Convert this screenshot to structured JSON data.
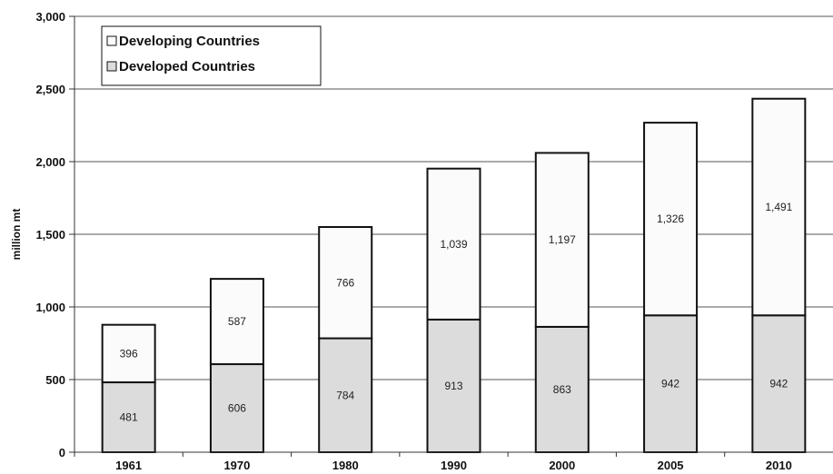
{
  "chart_data": {
    "type": "bar",
    "stacked": true,
    "categories": [
      "1961",
      "1970",
      "1980",
      "1990",
      "2000",
      "2005",
      "2010"
    ],
    "series": [
      {
        "name": "Developed Countries",
        "values": [
          481,
          606,
          784,
          913,
          863,
          942,
          942
        ],
        "labels": [
          "481",
          "606",
          "784",
          "913",
          "863",
          "942",
          "942"
        ],
        "color": "#dcdcdc"
      },
      {
        "name": "Developing Countries",
        "values": [
          396,
          587,
          766,
          1039,
          1197,
          1326,
          1491
        ],
        "labels": [
          "396",
          "587",
          "766",
          "1,039",
          "1,197",
          "1,326",
          "1,491"
        ],
        "color": "#fbfbfb"
      }
    ],
    "title": "",
    "xlabel": "",
    "ylabel": "million mt",
    "ylim": [
      0,
      3000
    ],
    "yticks": [
      0,
      500,
      1000,
      1500,
      2000,
      2500,
      3000
    ],
    "ytick_labels": [
      "0",
      "500",
      "1,000",
      "1,500",
      "2,000",
      "2,500",
      "3,000"
    ],
    "grid": true,
    "legend_position": "top-left",
    "legend": [
      "Developing Countries",
      "Developed Countries"
    ]
  }
}
